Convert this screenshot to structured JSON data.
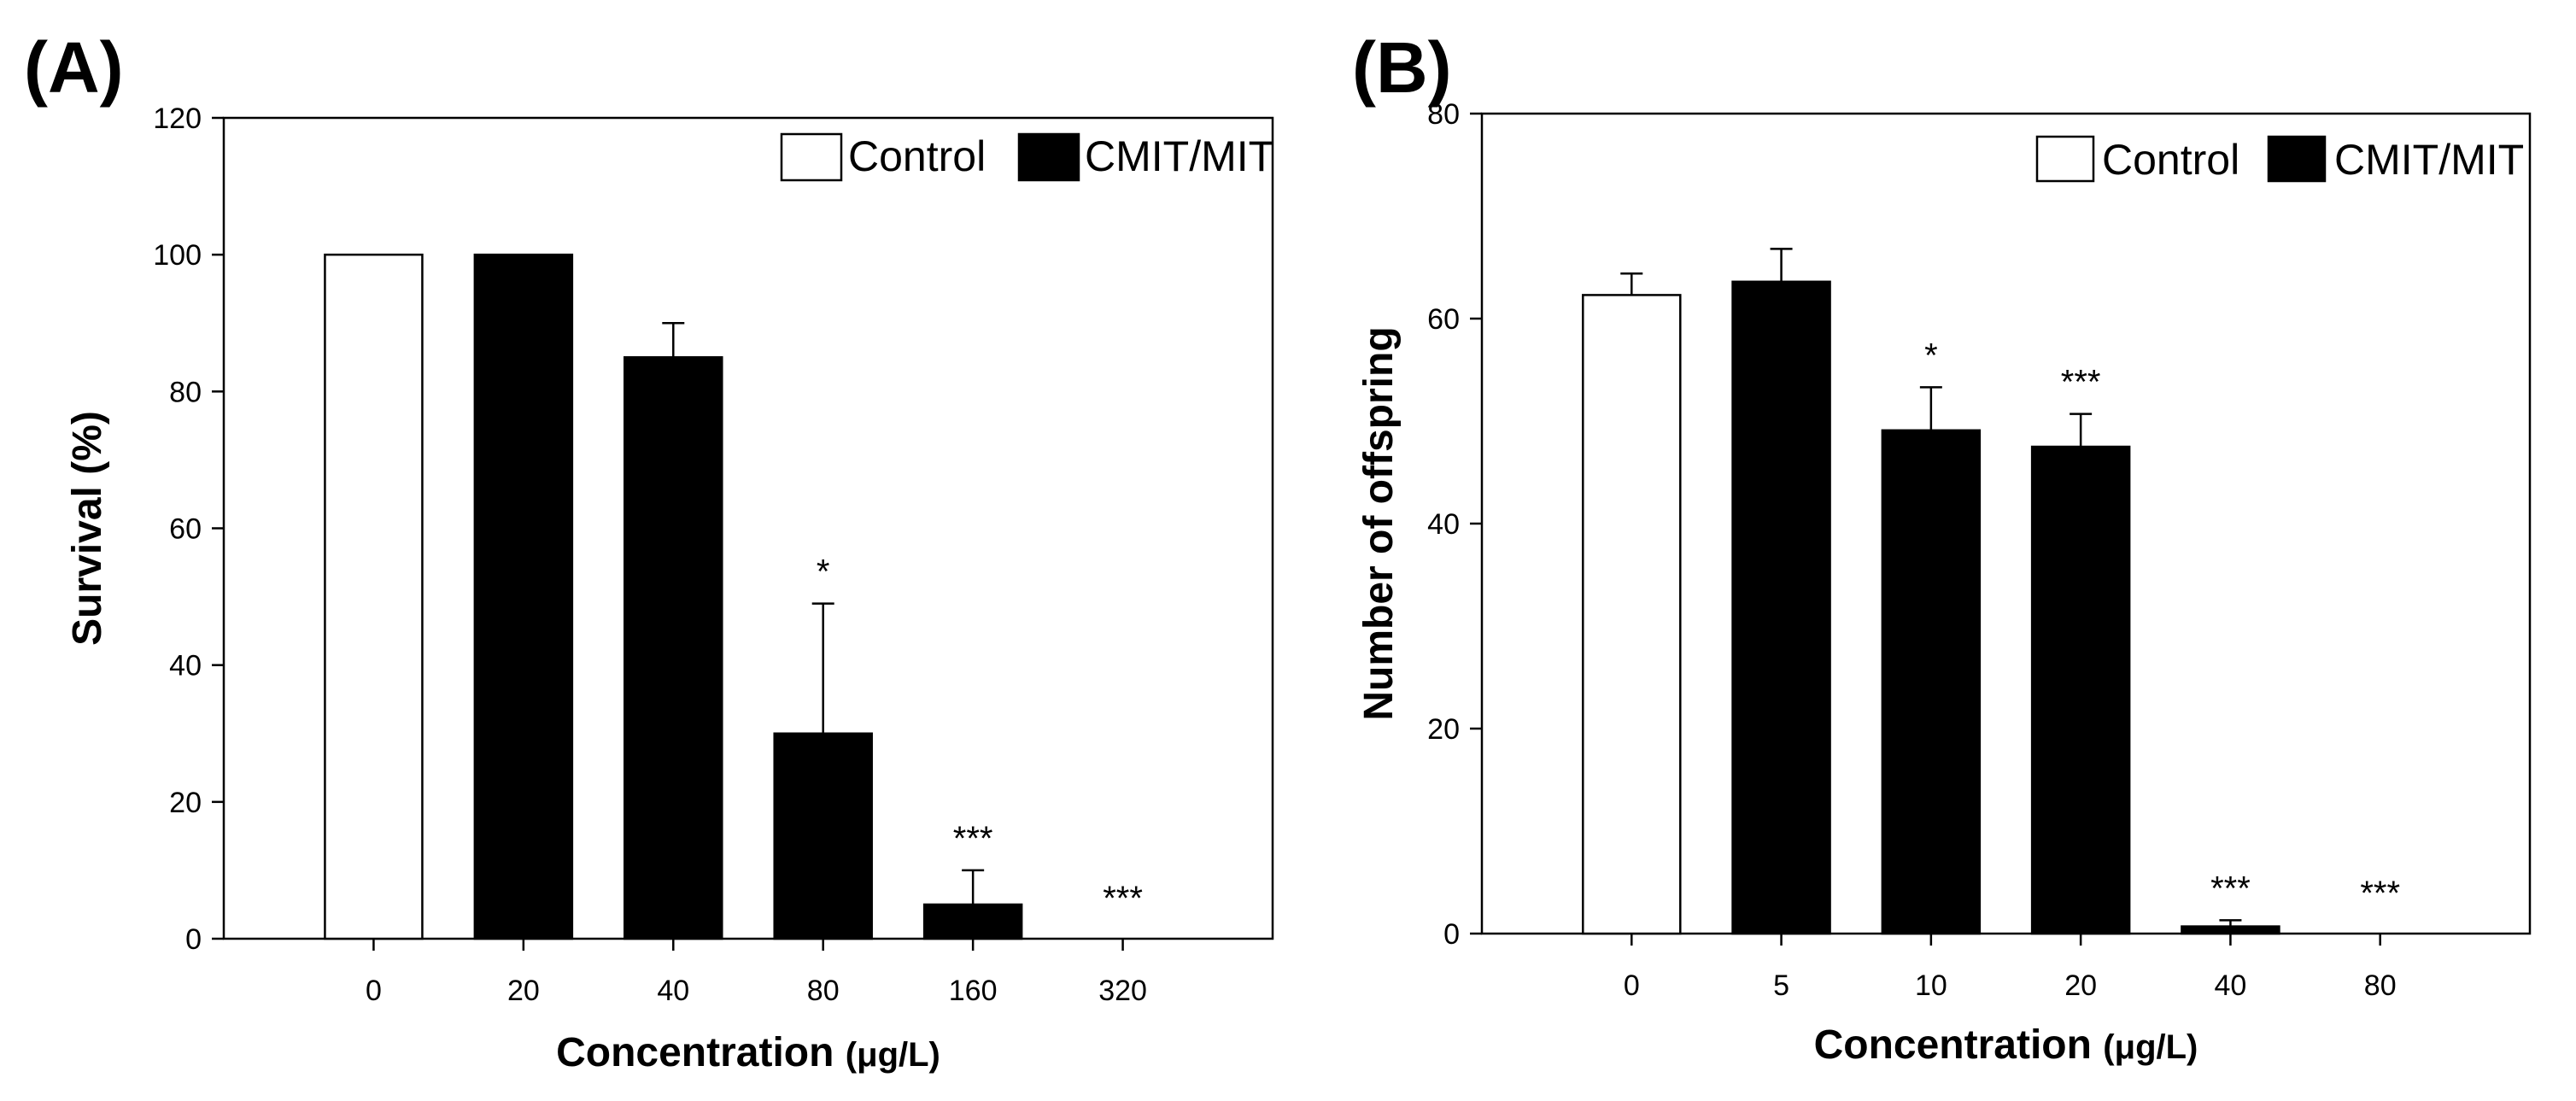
{
  "chart_data": [
    {
      "type": "bar",
      "panel_label": "(A)",
      "categories": [
        "0",
        "20",
        "40",
        "80",
        "160",
        "320"
      ],
      "series": [
        {
          "name": "Control",
          "color": "#ffffff",
          "values": [
            100,
            null,
            null,
            null,
            null,
            null
          ],
          "errors": [
            0,
            null,
            null,
            null,
            null,
            null
          ]
        },
        {
          "name": "CMIT/MIT",
          "color": "#000000",
          "values": [
            null,
            100,
            85,
            30,
            5,
            0
          ],
          "errors": [
            null,
            0,
            5,
            19,
            5,
            0
          ]
        }
      ],
      "significance": [
        "",
        "",
        "",
        "*",
        "***",
        "***"
      ],
      "ylabel": "Survival (%)",
      "xlabel": "Concentration",
      "xlabel_unit": "(μg/L)",
      "ylim": [
        0,
        120
      ],
      "yticks": [
        0,
        20,
        40,
        60,
        80,
        100,
        120
      ],
      "legend": [
        "Control",
        "CMIT/MIT"
      ],
      "legend_position": "top-right"
    },
    {
      "type": "bar",
      "panel_label": "(B)",
      "categories": [
        "0",
        "5",
        "10",
        "20",
        "40",
        "80"
      ],
      "series": [
        {
          "name": "Control",
          "color": "#ffffff",
          "values": [
            62.3,
            null,
            null,
            null,
            null,
            null
          ],
          "errors": [
            2.1,
            null,
            null,
            null,
            null,
            null
          ]
        },
        {
          "name": "CMIT/MIT",
          "color": "#000000",
          "values": [
            null,
            63.6,
            49.1,
            47.5,
            0.7,
            0
          ],
          "errors": [
            null,
            3.2,
            4.2,
            3.2,
            0.6,
            0
          ]
        }
      ],
      "significance": [
        "",
        "",
        "*",
        "***",
        "***",
        "***"
      ],
      "ylabel": "Number of offspring",
      "xlabel": "Concentration",
      "xlabel_unit": "(μg/L)",
      "ylim": [
        0,
        80
      ],
      "yticks": [
        0,
        20,
        40,
        60,
        80
      ],
      "legend": [
        "Control",
        "CMIT/MIT"
      ],
      "legend_position": "top-right"
    }
  ]
}
